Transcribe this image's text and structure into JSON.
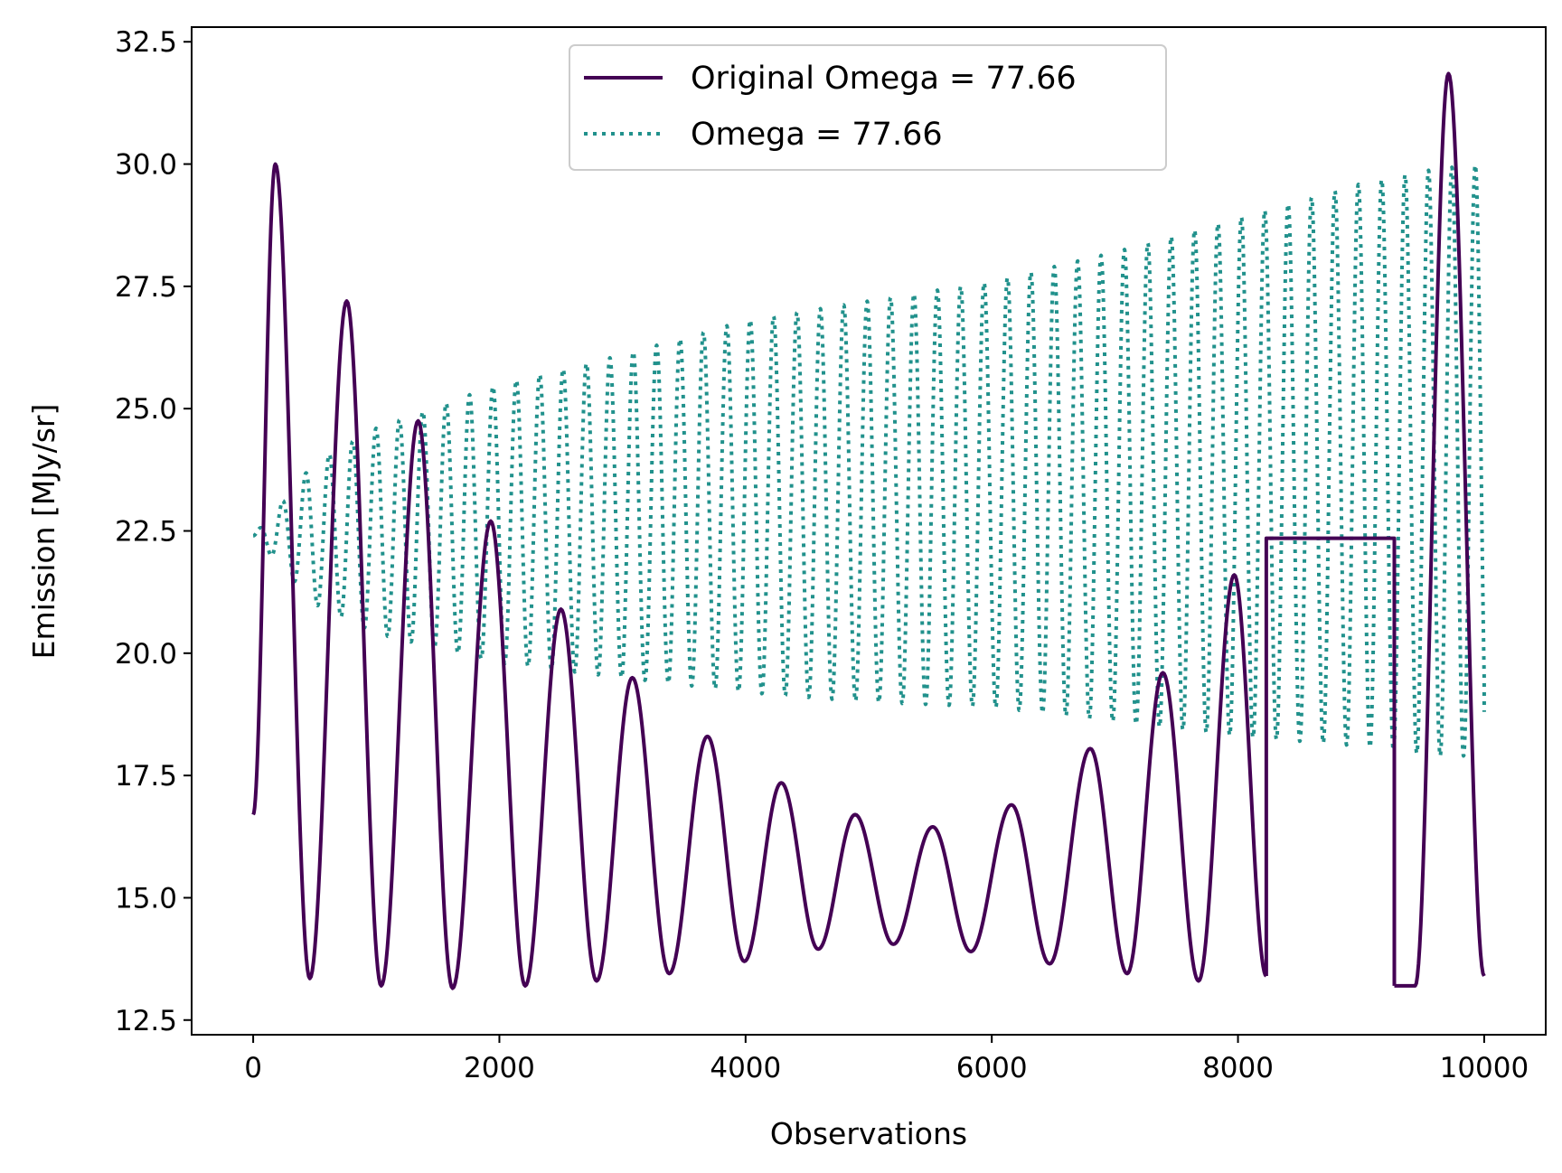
{
  "chart_data": {
    "type": "line",
    "title": "",
    "xlabel": "Observations",
    "ylabel": "Emission [MJy/sr]",
    "xlim": [
      -500,
      10500
    ],
    "ylim": [
      12.2,
      32.8
    ],
    "x_ticks": [
      0,
      2000,
      4000,
      6000,
      8000,
      10000
    ],
    "y_ticks": [
      12.5,
      15.0,
      17.5,
      20.0,
      22.5,
      25.0,
      27.5,
      30.0,
      32.5
    ],
    "grid": false,
    "legend_position": "top-center",
    "series": [
      {
        "name": "Original Omega = 77.66",
        "style": "solid",
        "color": "#440154",
        "segments": [
          {
            "x": [
              0,
              180,
              460,
              760,
              1040,
              1340,
              1620,
              1930,
              2210,
              2500,
              2790,
              3080,
              3380,
              3690,
              3990,
              4290,
              4590,
              4890,
              5200,
              5520,
              5830,
              6160,
              6470,
              6800,
              7100,
              7390,
              7680,
              7970,
              8230
            ],
            "y": [
              16.7,
              30.0,
              13.35,
              27.2,
              13.2,
              24.75,
              13.15,
              22.7,
              13.2,
              20.9,
              13.3,
              19.5,
              13.45,
              18.3,
              13.7,
              17.35,
              13.95,
              16.7,
              14.05,
              16.45,
              13.9,
              16.9,
              13.65,
              18.05,
              13.45,
              19.6,
              13.3,
              21.6,
              13.4
            ]
          },
          {
            "x": [
              8230,
              8230,
              9270,
              9270
            ],
            "y": [
              13.4,
              22.35,
              22.35,
              13.2
            ]
          },
          {
            "x": [
              9270,
              9440,
              9710,
              10000
            ],
            "y": [
              13.2,
              13.2,
              31.85,
              13.4
            ]
          }
        ]
      },
      {
        "name": "Omega = 77.66",
        "style": "dotted",
        "color": "#21918c",
        "center": 22.4,
        "start_x": 0,
        "end_x": 10000,
        "envelope_x": [
          0,
          500,
          1000,
          2000,
          3000,
          4000,
          5000,
          6000,
          7000,
          8000,
          9000,
          9600,
          10000
        ],
        "envelope_max": [
          22.4,
          23.9,
          24.6,
          25.5,
          26.1,
          26.8,
          27.2,
          27.6,
          28.2,
          28.9,
          29.6,
          29.9,
          30.0
        ],
        "envelope_min": [
          22.4,
          21.0,
          20.4,
          19.8,
          19.5,
          19.2,
          19.0,
          18.9,
          18.6,
          18.3,
          18.1,
          17.9,
          17.9
        ],
        "approx_period": 190,
        "end_y": 18.8
      }
    ]
  }
}
